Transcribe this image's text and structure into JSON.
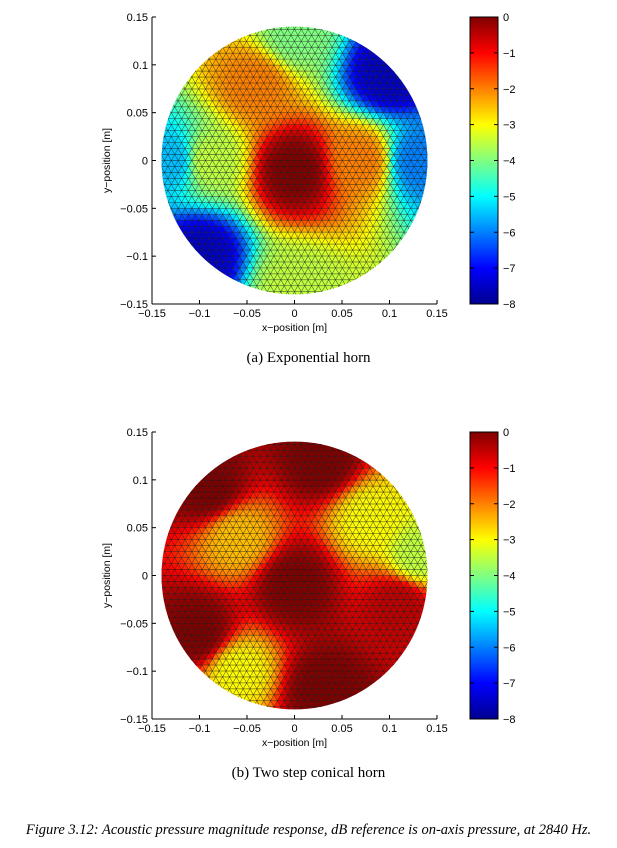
{
  "chart_data": [
    {
      "type": "heatmap",
      "panel": "(a)",
      "caption": "(a) Exponential horn",
      "xlabel": "x−position [m]",
      "ylabel": "y−position [m]",
      "xlim": [
        -0.15,
        0.15
      ],
      "ylim": [
        -0.15,
        0.15
      ],
      "xticks": [
        "−0.15",
        "−0.1",
        "−0.05",
        "0",
        "0.05",
        "0.1",
        "0.15"
      ],
      "yticks": [
        "0.15",
        "0.1",
        "0.05",
        "0",
        "−0.05",
        "−0.1",
        "−0.15"
      ],
      "colorbar": {
        "range": [
          -8,
          0
        ],
        "ticks": [
          "0",
          "−1",
          "−2",
          "−3",
          "−4",
          "−5",
          "−6",
          "−7",
          "−8"
        ],
        "colormap": "jet"
      },
      "domain": "circular mesh, radius 0.14 m",
      "field_description": "maximum (0 dB) at center, decreasing to about −8 dB at the edge, lowest along upper-right and lower-left rims",
      "field_samples": [
        {
          "x": 0.0,
          "y": -0.01,
          "value": 0.0
        },
        {
          "x": -0.04,
          "y": 0.08,
          "value": -2.0
        },
        {
          "x": 0.07,
          "y": 0.0,
          "value": -2.0
        },
        {
          "x": -0.09,
          "y": 0.0,
          "value": -3.5
        },
        {
          "x": 0.1,
          "y": 0.09,
          "value": -7.5
        },
        {
          "x": -0.1,
          "y": -0.1,
          "value": -7.5
        },
        {
          "x": -0.13,
          "y": 0.0,
          "value": -5.5
        },
        {
          "x": 0.13,
          "y": 0.0,
          "value": -6.0
        },
        {
          "x": 0.0,
          "y": 0.13,
          "value": -4.0
        },
        {
          "x": 0.0,
          "y": -0.13,
          "value": -3.5
        }
      ]
    },
    {
      "type": "heatmap",
      "panel": "(b)",
      "caption": "(b) Two step conical horn",
      "xlabel": "x−position [m]",
      "ylabel": "y−position [m]",
      "xlim": [
        -0.15,
        0.15
      ],
      "ylim": [
        -0.15,
        0.15
      ],
      "xticks": [
        "−0.15",
        "−0.1",
        "−0.05",
        "0",
        "0.05",
        "0.1",
        "0.15"
      ],
      "yticks": [
        "0.15",
        "0.1",
        "0.05",
        "0",
        "−0.05",
        "−0.1",
        "−0.15"
      ],
      "colorbar": {
        "range": [
          -8,
          0
        ],
        "ticks": [
          "0",
          "−1",
          "−2",
          "−3",
          "−4",
          "−5",
          "−6",
          "−7",
          "−8"
        ],
        "colormap": "jet"
      },
      "domain": "circular mesh, radius 0.14 m",
      "field_description": "maxima (0 dB) at center and at several rim lobes; minimum about −3.5 dB in bands between lobes",
      "field_samples": [
        {
          "x": 0.0,
          "y": -0.01,
          "value": 0.0
        },
        {
          "x": -0.09,
          "y": 0.09,
          "value": 0.0
        },
        {
          "x": 0.03,
          "y": 0.12,
          "value": 0.0
        },
        {
          "x": -0.1,
          "y": -0.06,
          "value": 0.0
        },
        {
          "x": 0.03,
          "y": -0.12,
          "value": 0.0
        },
        {
          "x": 0.11,
          "y": -0.03,
          "value": -0.5
        },
        {
          "x": 0.08,
          "y": 0.06,
          "value": -3.0
        },
        {
          "x": -0.06,
          "y": 0.04,
          "value": -2.5
        },
        {
          "x": -0.06,
          "y": -0.1,
          "value": -3.0
        },
        {
          "x": 0.13,
          "y": 0.02,
          "value": -3.5
        }
      ]
    }
  ],
  "figure_caption": "Figure 3.12: Acoustic pressure magnitude response, dB reference is on-axis pressure, at 2840 Hz.",
  "colormap_stops": [
    "#00008f",
    "#0000ff",
    "#0080ff",
    "#00ffff",
    "#80ff80",
    "#ffff00",
    "#ff8000",
    "#ff0000",
    "#800000"
  ]
}
